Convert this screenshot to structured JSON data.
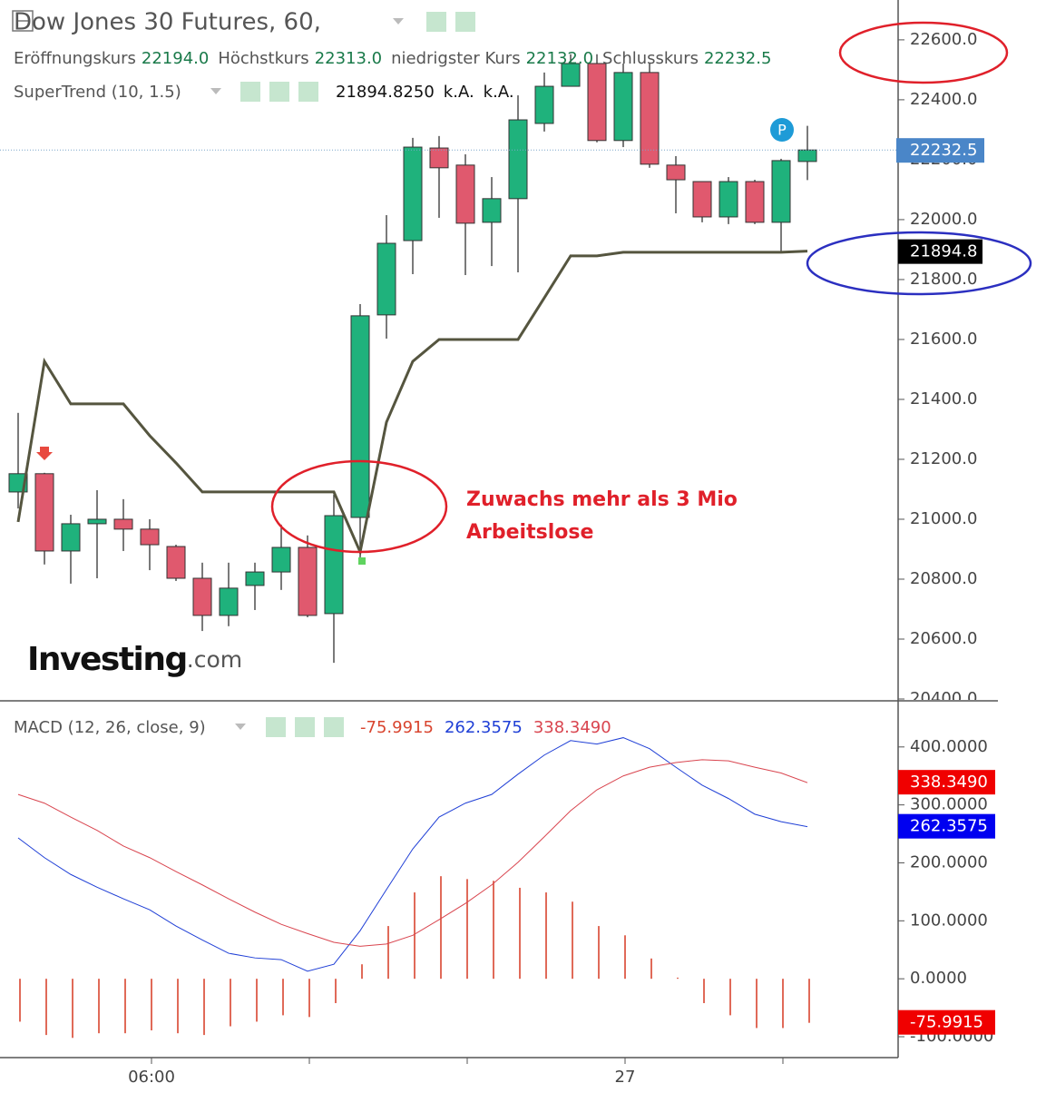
{
  "chart_data": [
    {
      "type": "candlestick",
      "title": "Dow Jones 30 Futures, 60,",
      "ohlc_legend": [
        {
          "name": "Eröffnungskurs",
          "value": "22194.0"
        },
        {
          "name": "Höchstkurs",
          "value": "22313.0"
        },
        {
          "name": "niedrigster Kurs",
          "value": "22132.0"
        },
        {
          "name": "Schlusskurs",
          "value": "22232.5"
        }
      ],
      "open": [
        21091,
        21152,
        20894,
        20985,
        21000,
        20967,
        20909,
        20803,
        20679,
        20779,
        20824,
        20906,
        20685,
        21006,
        21682,
        21930,
        22239,
        22182,
        21991,
        22070,
        22321,
        22445,
        22521,
        22264,
        22491,
        22182,
        22127,
        22009,
        22127,
        21991,
        22194
      ],
      "high": [
        21355,
        21155,
        21015,
        21097,
        21067,
        21000,
        20915,
        20855,
        20855,
        20855,
        20982,
        20946,
        21082,
        21718,
        22015,
        22273,
        22279,
        22218,
        22142,
        22415,
        22491,
        22552,
        22552,
        22521,
        22521,
        22212,
        22127,
        22142,
        22133,
        22203,
        22313
      ],
      "low": [
        21036,
        20849,
        20785,
        20803,
        20894,
        20830,
        20794,
        20627,
        20643,
        20697,
        20764,
        20673,
        20521,
        20855,
        21603,
        21818,
        22006,
        21815,
        21845,
        21824,
        22294,
        22445,
        22258,
        22242,
        22173,
        22021,
        21991,
        21985,
        21985,
        21891,
        22132
      ],
      "close": [
        21152,
        20894,
        20985,
        21000,
        20967,
        20915,
        20803,
        20679,
        20770,
        20824,
        20906,
        20679,
        21012,
        21679,
        21921,
        22242,
        22173,
        21988,
        22070,
        22333,
        22445,
        22521,
        22264,
        22491,
        22185,
        22133,
        22009,
        22127,
        21991,
        22197,
        22232.5
      ],
      "up_color": "#1fb27c",
      "down_color": "#e0596e",
      "overlay": {
        "name": "SuperTrend (10, 1.5)",
        "color": "#55553f",
        "values": [
          20991,
          21527,
          21385,
          21385,
          21385,
          21279,
          21188,
          21091,
          21091,
          21091,
          21091,
          21091,
          21091,
          20891,
          21324,
          21527,
          21600,
          21600,
          21600,
          21600,
          21739,
          21879,
          21879,
          21891,
          21891,
          21891,
          21891,
          21891,
          21891,
          21891,
          21894.825
        ],
        "legend_values": [
          "21894.8250",
          "k.A.",
          "k.A."
        ],
        "price_label": "21894.8"
      },
      "last_price_label": "22232.5",
      "marker_label": "P",
      "annotation": [
        "Zuwachs mehr als 3 Mio",
        "Arbeitslose"
      ],
      "watermark": {
        "brand": "Investing",
        "suffix": ".com"
      },
      "ylim": [
        20400,
        22733
      ],
      "yticks": [
        {
          "value": 20400,
          "label": "20400.0"
        },
        {
          "value": 20600,
          "label": "20600.0"
        },
        {
          "value": 20800,
          "label": "20800.0"
        },
        {
          "value": 21000,
          "label": "21000.0"
        },
        {
          "value": 21200,
          "label": "21200.0"
        },
        {
          "value": 21400,
          "label": "21400.0"
        },
        {
          "value": 21600,
          "label": "21600.0"
        },
        {
          "value": 21800,
          "label": "21800.0"
        },
        {
          "value": 22000,
          "label": "22000.0"
        },
        {
          "value": 22200,
          "label": "22200.0"
        },
        {
          "value": 22400,
          "label": "22400.0"
        },
        {
          "value": 22600,
          "label": "22600.0"
        }
      ]
    },
    {
      "type": "macd",
      "title": "MACD (12, 26, close, 9)",
      "categories": [
        null,
        null,
        null,
        null,
        null,
        "06:00",
        null,
        null,
        null,
        null,
        null,
        null,
        null,
        null,
        null,
        null,
        null,
        null,
        null,
        null,
        null,
        null,
        null,
        "27",
        null,
        null,
        null,
        null,
        null,
        null,
        null
      ],
      "series": [
        {
          "style": "histogram",
          "color": "#d9452f",
          "label": "-75.9915",
          "values": [
            -74,
            -97,
            -102,
            -94,
            -94,
            -89,
            -94,
            -97,
            -82,
            -74,
            -63,
            -66,
            -42,
            25,
            91,
            149,
            177,
            172,
            169,
            157,
            149,
            133,
            91,
            75,
            35,
            2,
            -42,
            -63,
            -85,
            -85,
            -75.9915
          ]
        },
        {
          "style": "line",
          "color": "#1f3fd6",
          "label": "262.3575",
          "values": [
            243,
            209,
            180,
            158,
            138,
            119,
            91,
            67,
            44,
            36,
            33,
            13,
            25,
            83,
            154,
            224,
            279,
            303,
            318,
            353,
            386,
            411,
            405,
            416,
            397,
            365,
            334,
            311,
            284,
            271,
            262.3575
          ]
        },
        {
          "style": "line",
          "color": "#d9454f",
          "label": "338.3490",
          "values": [
            318,
            303,
            279,
            256,
            229,
            209,
            185,
            162,
            138,
            115,
            94,
            78,
            63,
            56,
            60,
            75,
            102,
            130,
            162,
            201,
            245,
            290,
            326,
            350,
            365,
            373,
            378,
            376,
            365,
            355,
            338.349
          ]
        }
      ],
      "ylim": [
        -136,
        478
      ],
      "yticks": [
        {
          "value": -100,
          "label": "-100.0000"
        },
        {
          "value": 0,
          "label": "0.0000"
        },
        {
          "value": 100,
          "label": "100.0000"
        },
        {
          "value": 200,
          "label": "200.0000"
        },
        {
          "value": 300,
          "label": "300.0000"
        },
        {
          "value": 400,
          "label": "400.0000"
        }
      ]
    }
  ]
}
